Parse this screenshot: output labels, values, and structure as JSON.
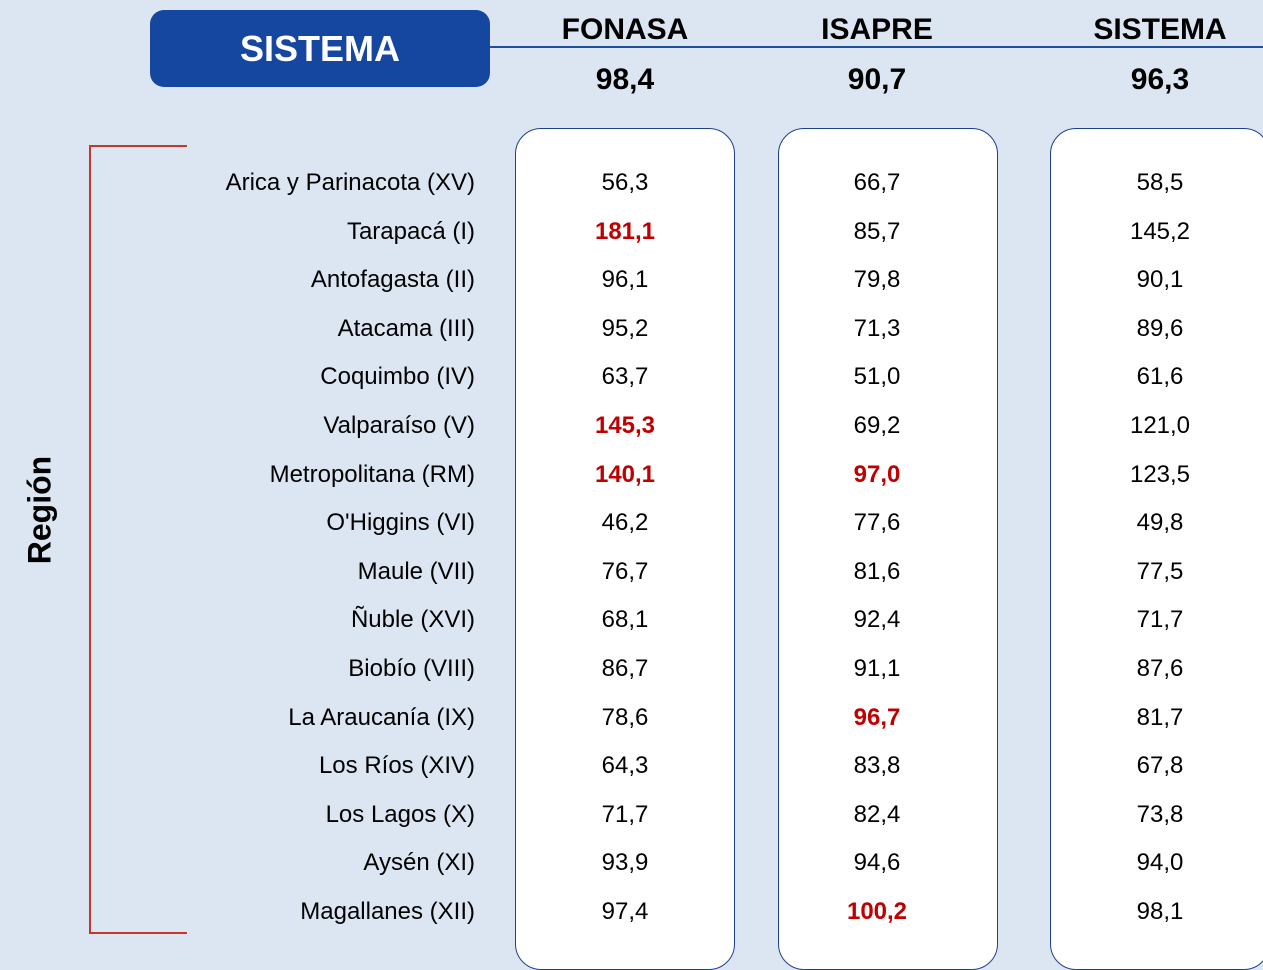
{
  "header": {
    "title": "SISTEMA",
    "axis_label": "Región"
  },
  "table": {
    "highlight_color": "#c00000",
    "columns": [
      {
        "name": "FONASA",
        "total": "98,4"
      },
      {
        "name": "ISAPRE",
        "total": "90,7"
      },
      {
        "name": "SISTEMA",
        "total": "96,3"
      }
    ],
    "rows": [
      {
        "region": "Arica y Parinacota (XV)",
        "cells": [
          {
            "text": "56,3"
          },
          {
            "text": "66,7"
          },
          {
            "text": "58,5"
          }
        ]
      },
      {
        "region": "Tarapacá (I)",
        "cells": [
          {
            "text": "181,1",
            "highlight": true
          },
          {
            "text": "85,7"
          },
          {
            "text": "145,2"
          }
        ]
      },
      {
        "region": "Antofagasta (II)",
        "cells": [
          {
            "text": "96,1"
          },
          {
            "text": "79,8"
          },
          {
            "text": "90,1"
          }
        ]
      },
      {
        "region": "Atacama (III)",
        "cells": [
          {
            "text": "95,2"
          },
          {
            "text": "71,3"
          },
          {
            "text": "89,6"
          }
        ]
      },
      {
        "region": "Coquimbo (IV)",
        "cells": [
          {
            "text": "63,7"
          },
          {
            "text": "51,0"
          },
          {
            "text": "61,6"
          }
        ]
      },
      {
        "region": "Valparaíso (V)",
        "cells": [
          {
            "text": "145,3",
            "highlight": true
          },
          {
            "text": "69,2"
          },
          {
            "text": "121,0"
          }
        ]
      },
      {
        "region": "Metropolitana (RM)",
        "cells": [
          {
            "text": "140,1",
            "highlight": true
          },
          {
            "text": "97,0",
            "highlight": true
          },
          {
            "text": "123,5"
          }
        ]
      },
      {
        "region": "O'Higgins (VI)",
        "cells": [
          {
            "text": "46,2"
          },
          {
            "text": "77,6"
          },
          {
            "text": "49,8"
          }
        ]
      },
      {
        "region": "Maule (VII)",
        "cells": [
          {
            "text": "76,7"
          },
          {
            "text": "81,6"
          },
          {
            "text": "77,5"
          }
        ]
      },
      {
        "region": "Ñuble (XVI)",
        "cells": [
          {
            "text": "68,1"
          },
          {
            "text": "92,4"
          },
          {
            "text": "71,7"
          }
        ]
      },
      {
        "region": "Biobío (VIII)",
        "cells": [
          {
            "text": "86,7"
          },
          {
            "text": "91,1"
          },
          {
            "text": "87,6"
          }
        ]
      },
      {
        "region": "La Araucanía (IX)",
        "cells": [
          {
            "text": "78,6"
          },
          {
            "text": "96,7",
            "highlight": true
          },
          {
            "text": "81,7"
          }
        ]
      },
      {
        "region": "Los Ríos (XIV)",
        "cells": [
          {
            "text": "64,3"
          },
          {
            "text": "83,8"
          },
          {
            "text": "67,8"
          }
        ]
      },
      {
        "region": "Los Lagos (X)",
        "cells": [
          {
            "text": "71,7"
          },
          {
            "text": "82,4"
          },
          {
            "text": "73,8"
          }
        ]
      },
      {
        "region": "Aysén (XI)",
        "cells": [
          {
            "text": "93,9"
          },
          {
            "text": "94,6"
          },
          {
            "text": "94,0"
          }
        ]
      },
      {
        "region": "Magallanes (XII)",
        "cells": [
          {
            "text": "97,4"
          },
          {
            "text": "100,2",
            "highlight": true
          },
          {
            "text": "98,1"
          }
        ]
      }
    ]
  }
}
